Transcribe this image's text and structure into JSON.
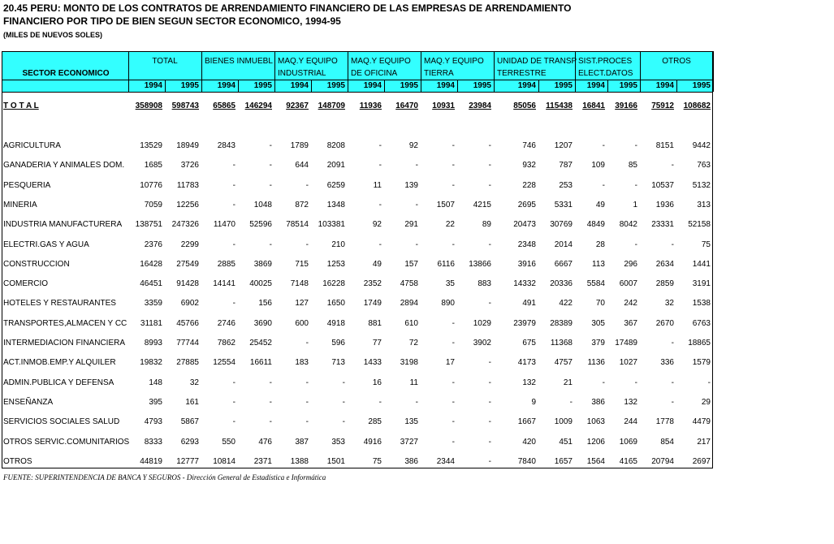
{
  "header": {
    "title_lines": [
      "20.45  PERU: MONTO DE LOS CONTRATOS DE ARRENDAMIENTO FINANCIERO DE LAS EMPRESAS DE ARRENDAMIENTO",
      "FINANCIERO POR TIPO DE BIEN SEGUN SECTOR ECONOMICO, 1994-95"
    ],
    "units": "(MILES DE NUEVOS SOLES)"
  },
  "table": {
    "row_header": "SECTOR ECONOMICO",
    "groups": [
      {
        "lines": [
          "TOTAL"
        ],
        "years": [
          "1994",
          "1995"
        ]
      },
      {
        "lines": [
          "BIENES INMUEBL"
        ],
        "years": [
          "1994",
          "1995"
        ]
      },
      {
        "lines": [
          "MAQ.Y EQUIPO",
          "INDUSTRIAL"
        ],
        "years": [
          "1994",
          "1995"
        ]
      },
      {
        "lines": [
          "MAQ.Y EQUIPO",
          "DE OFICINA"
        ],
        "years": [
          "1994",
          "1995"
        ]
      },
      {
        "lines": [
          "MAQ.Y EQUIPO",
          "TIERRA"
        ],
        "years": [
          "1994",
          "1995"
        ]
      },
      {
        "lines": [
          "UNIDAD DE TRANSP",
          "TERRESTRE"
        ],
        "years": [
          "1994",
          "1995"
        ]
      },
      {
        "lines": [
          "SIST.PROCES",
          "ELECT.DATOS"
        ],
        "years": [
          "1994",
          "1995"
        ]
      },
      {
        "lines": [
          "OTROS"
        ],
        "years": [
          "1994",
          "1995"
        ]
      }
    ],
    "total": {
      "label": "T O T A L",
      "cells": [
        "358908",
        "598743",
        "65865",
        "146294",
        "92367",
        "148709",
        "11936",
        "16470",
        "10931",
        "23984",
        "85056",
        "115438",
        "16841",
        "39166",
        "75912",
        "108682"
      ]
    },
    "rows": [
      {
        "label": "AGRICULTURA",
        "cells": [
          "13529",
          "18949",
          "2843",
          "-",
          "1789",
          "8208",
          "-",
          "92",
          "-",
          "-",
          "746",
          "1207",
          "-",
          "-",
          "8151",
          "9442"
        ]
      },
      {
        "label": "GANADERIA Y ANIMALES DOM.",
        "cells": [
          "1685",
          "3726",
          "-",
          "-",
          "644",
          "2091",
          "-",
          "-",
          "-",
          "-",
          "932",
          "787",
          "109",
          "85",
          "-",
          "763"
        ]
      },
      {
        "label": "PESQUERIA",
        "cells": [
          "10776",
          "11783",
          "-",
          "-",
          "-",
          "6259",
          "11",
          "139",
          "-",
          "-",
          "228",
          "253",
          "-",
          "-",
          "10537",
          "5132"
        ]
      },
      {
        "label": "MINERIA",
        "cells": [
          "7059",
          "12256",
          "-",
          "1048",
          "872",
          "1348",
          "-",
          "-",
          "1507",
          "4215",
          "2695",
          "5331",
          "49",
          "1",
          "1936",
          "313"
        ]
      },
      {
        "label": "INDUSTRIA MANUFACTURERA",
        "cells": [
          "138751",
          "247326",
          "11470",
          "52596",
          "78514",
          "103381",
          "92",
          "291",
          "22",
          "89",
          "20473",
          "30769",
          "4849",
          "8042",
          "23331",
          "52158"
        ]
      },
      {
        "label": "ELECTRI.GAS Y AGUA",
        "cells": [
          "2376",
          "2299",
          "-",
          "-",
          "-",
          "210",
          "-",
          "-",
          "-",
          "-",
          "2348",
          "2014",
          "28",
          "-",
          "-",
          "75"
        ]
      },
      {
        "label": "CONSTRUCCION",
        "cells": [
          "16428",
          "27549",
          "2885",
          "3869",
          "715",
          "1253",
          "49",
          "157",
          "6116",
          "13866",
          "3916",
          "6667",
          "113",
          "296",
          "2634",
          "1441"
        ]
      },
      {
        "label": "COMERCIO",
        "cells": [
          "46451",
          "91428",
          "14141",
          "40025",
          "7148",
          "16228",
          "2352",
          "4758",
          "35",
          "883",
          "14332",
          "20336",
          "5584",
          "6007",
          "2859",
          "3191"
        ]
      },
      {
        "label": "HOTELES Y RESTAURANTES",
        "cells": [
          "3359",
          "6902",
          "-",
          "156",
          "127",
          "1650",
          "1749",
          "2894",
          "890",
          "-",
          "491",
          "422",
          "70",
          "242",
          "32",
          "1538"
        ]
      },
      {
        "label": "TRANSPORTES,ALMACEN Y CC",
        "cells": [
          "31181",
          "45766",
          "2746",
          "3690",
          "600",
          "4918",
          "881",
          "610",
          "-",
          "1029",
          "23979",
          "28389",
          "305",
          "367",
          "2670",
          "6763"
        ]
      },
      {
        "label": "INTERMEDIACION FINANCIERA",
        "cells": [
          "8993",
          "77744",
          "7862",
          "25452",
          "-",
          "596",
          "77",
          "72",
          "-",
          "3902",
          "675",
          "11368",
          "379",
          "17489",
          "-",
          "18865"
        ]
      },
      {
        "label": "ACT.INMOB.EMP.Y ALQUILER",
        "cells": [
          "19832",
          "27885",
          "12554",
          "16611",
          "183",
          "713",
          "1433",
          "3198",
          "17",
          "-",
          "4173",
          "4757",
          "1136",
          "1027",
          "336",
          "1579"
        ]
      },
      {
        "label": "ADMIN.PUBLICA Y DEFENSA",
        "cells": [
          "148",
          "32",
          "-",
          "-",
          "-",
          "-",
          "16",
          "11",
          "-",
          "-",
          "132",
          "21",
          "-",
          "-",
          "-",
          "-"
        ]
      },
      {
        "label": "ENSEÑANZA",
        "cells": [
          "395",
          "161",
          "-",
          "-",
          "-",
          "-",
          "-",
          "-",
          "-",
          "-",
          "9",
          "-",
          "386",
          "132",
          "-",
          "29"
        ]
      },
      {
        "label": "SERVICIOS SOCIALES SALUD",
        "cells": [
          "4793",
          "5867",
          "-",
          "-",
          "-",
          "-",
          "285",
          "135",
          "-",
          "-",
          "1667",
          "1009",
          "1063",
          "244",
          "1778",
          "4479"
        ]
      },
      {
        "label": "OTROS SERVIC.COMUNITARIOS",
        "cells": [
          "8333",
          "6293",
          "550",
          "476",
          "387",
          "353",
          "4916",
          "3727",
          "-",
          "-",
          "420",
          "451",
          "1206",
          "1069",
          "854",
          "217"
        ]
      },
      {
        "label": "OTROS",
        "cells": [
          "44819",
          "12777",
          "10814",
          "2371",
          "1388",
          "1501",
          "75",
          "386",
          "2344",
          "-",
          "7840",
          "1657",
          "1564",
          "4165",
          "20794",
          "2697"
        ]
      }
    ]
  },
  "footer": {
    "source": "FUENTE:  SUPERINTENDENCIA DE BANCA Y SEGUROS - Dirección General de Estadística e Informática"
  }
}
